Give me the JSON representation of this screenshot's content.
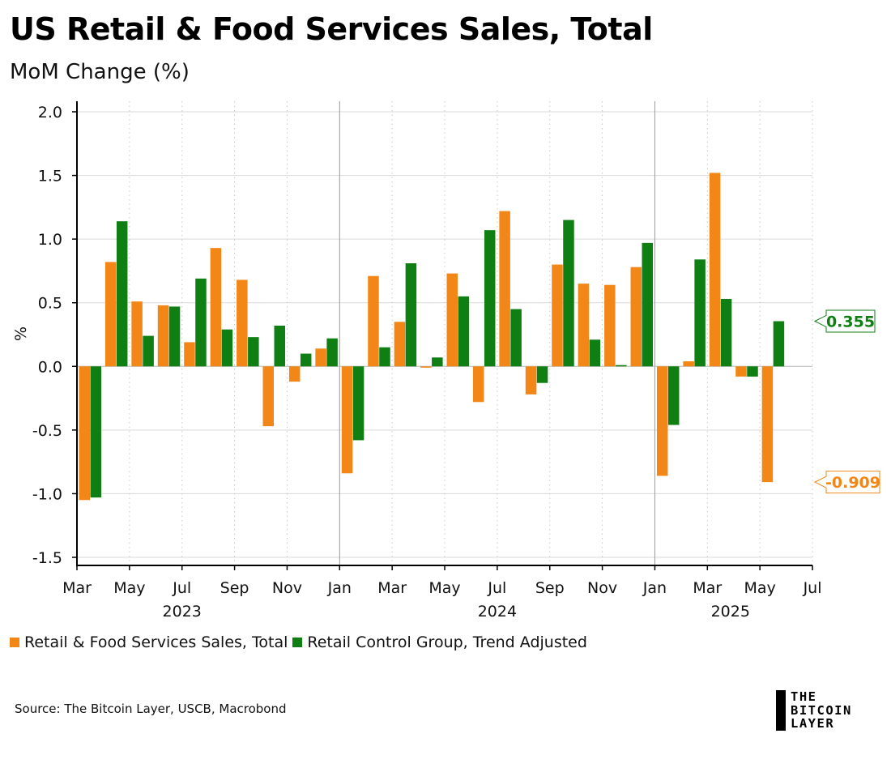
{
  "chart_data": {
    "type": "bar",
    "title": "US Retail & Food Services Sales, Total",
    "subtitle": "MoM Change (%)",
    "ylabel": "%",
    "ylim": [
      -1.6,
      2.1
    ],
    "yticks": [
      2.0,
      1.5,
      1.0,
      0.5,
      0.0,
      -0.5,
      -1.0,
      -1.5
    ],
    "ytick_labels": [
      "2.0",
      "1.5",
      "1.0",
      "0.5",
      "0.0",
      "-0.5",
      "-1.0",
      "-1.5"
    ],
    "categories": [
      "Mar 2023",
      "Apr 2023",
      "May 2023",
      "Jun 2023",
      "Jul 2023",
      "Aug 2023",
      "Sep 2023",
      "Oct 2023",
      "Nov 2023",
      "Dec 2023",
      "Jan 2024",
      "Feb 2024",
      "Mar 2024",
      "Apr 2024",
      "May 2024",
      "Jun 2024",
      "Jul 2024",
      "Aug 2024",
      "Sep 2024",
      "Oct 2024",
      "Nov 2024",
      "Dec 2024",
      "Jan 2025",
      "Feb 2025",
      "Mar 2025",
      "Apr 2025",
      "May 2025"
    ],
    "x_tick_labels": [
      "Mar",
      "May",
      "Jul",
      "Sep",
      "Nov",
      "Jan",
      "Mar",
      "May",
      "Jul",
      "Sep",
      "Nov",
      "Jan",
      "Mar",
      "May",
      "Jul"
    ],
    "year_labels": [
      "2023",
      "2024",
      "2025"
    ],
    "series": [
      {
        "name": "Retail & Food Services Sales, Total",
        "color": "#f28717",
        "values": [
          -1.05,
          0.82,
          0.51,
          0.48,
          0.19,
          0.93,
          0.68,
          -0.47,
          -0.12,
          0.14,
          -0.84,
          0.71,
          0.35,
          -0.01,
          0.73,
          -0.28,
          1.22,
          -0.22,
          0.8,
          0.65,
          0.64,
          0.78,
          -0.86,
          0.04,
          1.52,
          -0.08,
          -0.909
        ]
      },
      {
        "name": "Retail Control Group, Trend Adjusted",
        "color": "#0f7f14",
        "values": [
          -1.03,
          1.14,
          0.24,
          0.47,
          0.69,
          0.29,
          0.23,
          0.32,
          0.1,
          0.22,
          -0.58,
          0.15,
          0.81,
          0.07,
          0.55,
          1.07,
          0.45,
          -0.13,
          1.15,
          0.21,
          0.01,
          0.97,
          -0.46,
          0.84,
          0.53,
          -0.08,
          0.355
        ]
      }
    ],
    "annotations": [
      {
        "label": "0.355",
        "value": 0.355,
        "series": 1
      },
      {
        "label": "-0.909",
        "value": -0.909,
        "series": 0
      }
    ],
    "grid": true,
    "legend": "bottom-left"
  },
  "header": {
    "title": "US Retail & Food Services Sales, Total",
    "subtitle": "MoM Change (%)"
  },
  "legend": {
    "items": [
      {
        "label": "Retail & Food Services Sales, Total",
        "color": "#f28717"
      },
      {
        "label": "Retail Control Group, Trend Adjusted",
        "color": "#0f7f14"
      }
    ]
  },
  "footer": {
    "source": "Source: The Bitcoin Layer, USCB, Macrobond",
    "logo_lines": [
      "THE",
      "BITCOIN",
      "LAYER"
    ]
  }
}
